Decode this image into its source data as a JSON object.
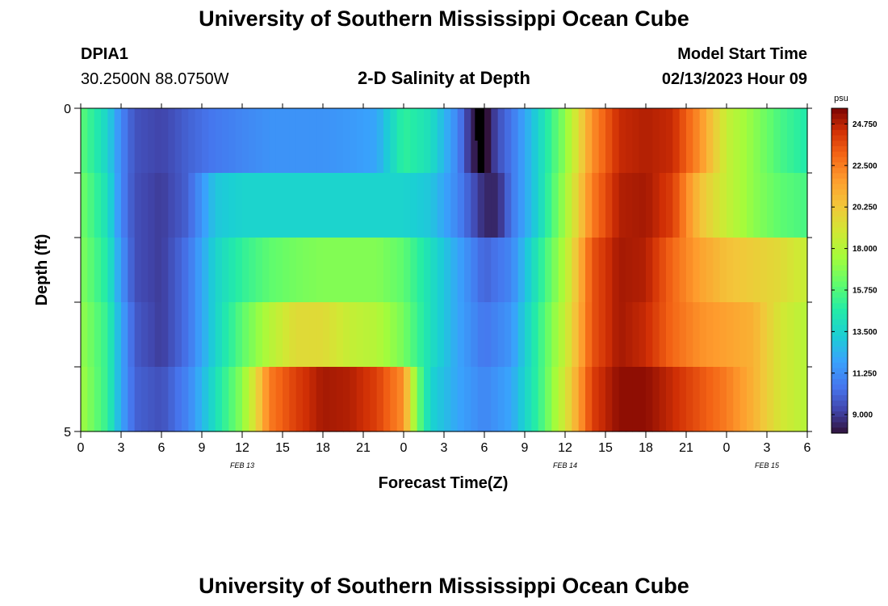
{
  "header": {
    "title": "University of Southern Mississippi Ocean Cube",
    "station": "DPIA1",
    "coords": "30.2500N  88.0750W",
    "plot_title": "2-D Salinity at Depth",
    "model_start_label": "Model Start Time",
    "model_start_value": "02/13/2023 Hour 09"
  },
  "footer": {
    "title": "University of Southern Mississippi Ocean Cube"
  },
  "chart_data": {
    "type": "heatmap",
    "title": "2-D Salinity at Depth",
    "xlabel": "Forecast Time(Z)",
    "ylabel": "Depth (ft)",
    "x_tick_labels": [
      "0",
      "3",
      "6",
      "9",
      "12",
      "15",
      "18",
      "21",
      "0",
      "3",
      "6",
      "9",
      "12",
      "15",
      "18",
      "21",
      "0",
      "3",
      "6"
    ],
    "x_range_hours": [
      0,
      54
    ],
    "date_labels": [
      {
        "label": "FEB 13",
        "hour": 12
      },
      {
        "label": "FEB 14",
        "hour": 36
      },
      {
        "label": "FEB 15",
        "hour": 51
      }
    ],
    "y_tick_labels": [
      "0",
      "5"
    ],
    "ylim": [
      0,
      5
    ],
    "y_inverted": true,
    "depth_layers": 5,
    "colorbar": {
      "unit": "psu",
      "ticks": [
        "24.750",
        "22.500",
        "20.250",
        "18.000",
        "15.750",
        "13.500",
        "11.250",
        "9.000"
      ],
      "tick_values": [
        24.75,
        22.5,
        20.25,
        18.0,
        15.75,
        13.5,
        11.25,
        9.0
      ],
      "vmin": 8.0,
      "vmax": 25.6
    },
    "series": [
      {
        "depth_range": [
          0,
          1
        ],
        "hours": [
          0,
          2,
          3,
          4,
          6,
          8,
          10,
          12,
          14,
          16,
          18,
          20,
          22,
          24,
          26,
          28,
          29,
          30,
          31,
          32,
          34,
          36,
          38,
          40,
          42,
          44,
          46,
          48,
          50,
          52,
          54
        ],
        "values": [
          16.0,
          13.5,
          11.0,
          9.6,
          9.2,
          10.0,
          10.6,
          11.0,
          11.4,
          11.4,
          11.4,
          11.6,
          12.0,
          15.0,
          14.0,
          11.0,
          8.5,
          7.5,
          9.5,
          10.5,
          13.5,
          17.0,
          22.0,
          24.5,
          24.8,
          24.5,
          22.0,
          18.5,
          17.0,
          15.5,
          14.5
        ]
      },
      {
        "depth_range": [
          1,
          2
        ],
        "hours": [
          0,
          2,
          3,
          4,
          6,
          8,
          10,
          12,
          14,
          16,
          18,
          20,
          22,
          24,
          26,
          28,
          30,
          31,
          32,
          34,
          36,
          38,
          40,
          42,
          44,
          46,
          48,
          50,
          52,
          54
        ],
        "values": [
          16.5,
          14.0,
          11.0,
          9.5,
          9.0,
          10.0,
          13.0,
          13.5,
          13.5,
          13.5,
          13.5,
          13.5,
          13.5,
          13.5,
          13.0,
          11.0,
          8.5,
          8.5,
          10.5,
          13.5,
          17.5,
          22.5,
          24.8,
          25.0,
          24.0,
          20.5,
          18.5,
          17.0,
          16.0,
          15.5
        ]
      },
      {
        "depth_range": [
          2,
          3
        ],
        "hours": [
          0,
          2,
          3,
          4,
          6,
          8,
          10,
          12,
          14,
          16,
          18,
          20,
          22,
          24,
          26,
          28,
          30,
          32,
          34,
          36,
          38,
          40,
          42,
          44,
          46,
          48,
          50,
          52,
          54
        ],
        "values": [
          16.8,
          14.5,
          11.5,
          9.5,
          9.0,
          10.5,
          13.5,
          15.0,
          16.0,
          16.5,
          16.8,
          16.8,
          16.8,
          16.0,
          14.0,
          12.0,
          10.0,
          11.0,
          14.5,
          18.0,
          23.5,
          25.0,
          24.8,
          23.0,
          21.5,
          20.5,
          20.0,
          19.5,
          18.5
        ]
      },
      {
        "depth_range": [
          3,
          4
        ],
        "hours": [
          0,
          2,
          3,
          4,
          6,
          8,
          10,
          12,
          14,
          16,
          18,
          20,
          22,
          24,
          26,
          28,
          30,
          32,
          34,
          36,
          38,
          40,
          42,
          44,
          46,
          48,
          50,
          52,
          54
        ],
        "values": [
          17.2,
          15.0,
          12.0,
          9.8,
          9.0,
          10.5,
          13.5,
          16.0,
          18.0,
          19.5,
          19.5,
          18.5,
          18.0,
          16.5,
          14.0,
          12.0,
          10.5,
          11.5,
          15.0,
          18.5,
          23.5,
          25.0,
          24.5,
          23.0,
          22.0,
          21.5,
          21.0,
          19.0,
          18.0
        ]
      },
      {
        "depth_range": [
          4,
          5
        ],
        "hours": [
          0,
          2,
          3,
          4,
          6,
          8,
          10,
          12,
          13,
          14,
          16,
          18,
          20,
          22,
          24,
          25,
          26,
          28,
          30,
          32,
          34,
          36,
          38,
          40,
          42,
          44,
          46,
          48,
          50,
          52,
          54
        ],
        "values": [
          17.5,
          15.0,
          12.0,
          10.0,
          9.5,
          11.0,
          14.0,
          17.0,
          19.5,
          22.5,
          24.0,
          25.0,
          24.8,
          24.0,
          22.0,
          16.5,
          13.5,
          12.0,
          11.0,
          12.0,
          15.0,
          19.0,
          24.0,
          25.3,
          25.3,
          24.5,
          23.5,
          22.5,
          21.0,
          19.0,
          18.0
        ]
      }
    ],
    "special_patches": [
      {
        "hour_start": 29.3,
        "hour_end": 29.8,
        "depth_start": 0,
        "depth_end": 0.5,
        "value": 5
      }
    ]
  }
}
